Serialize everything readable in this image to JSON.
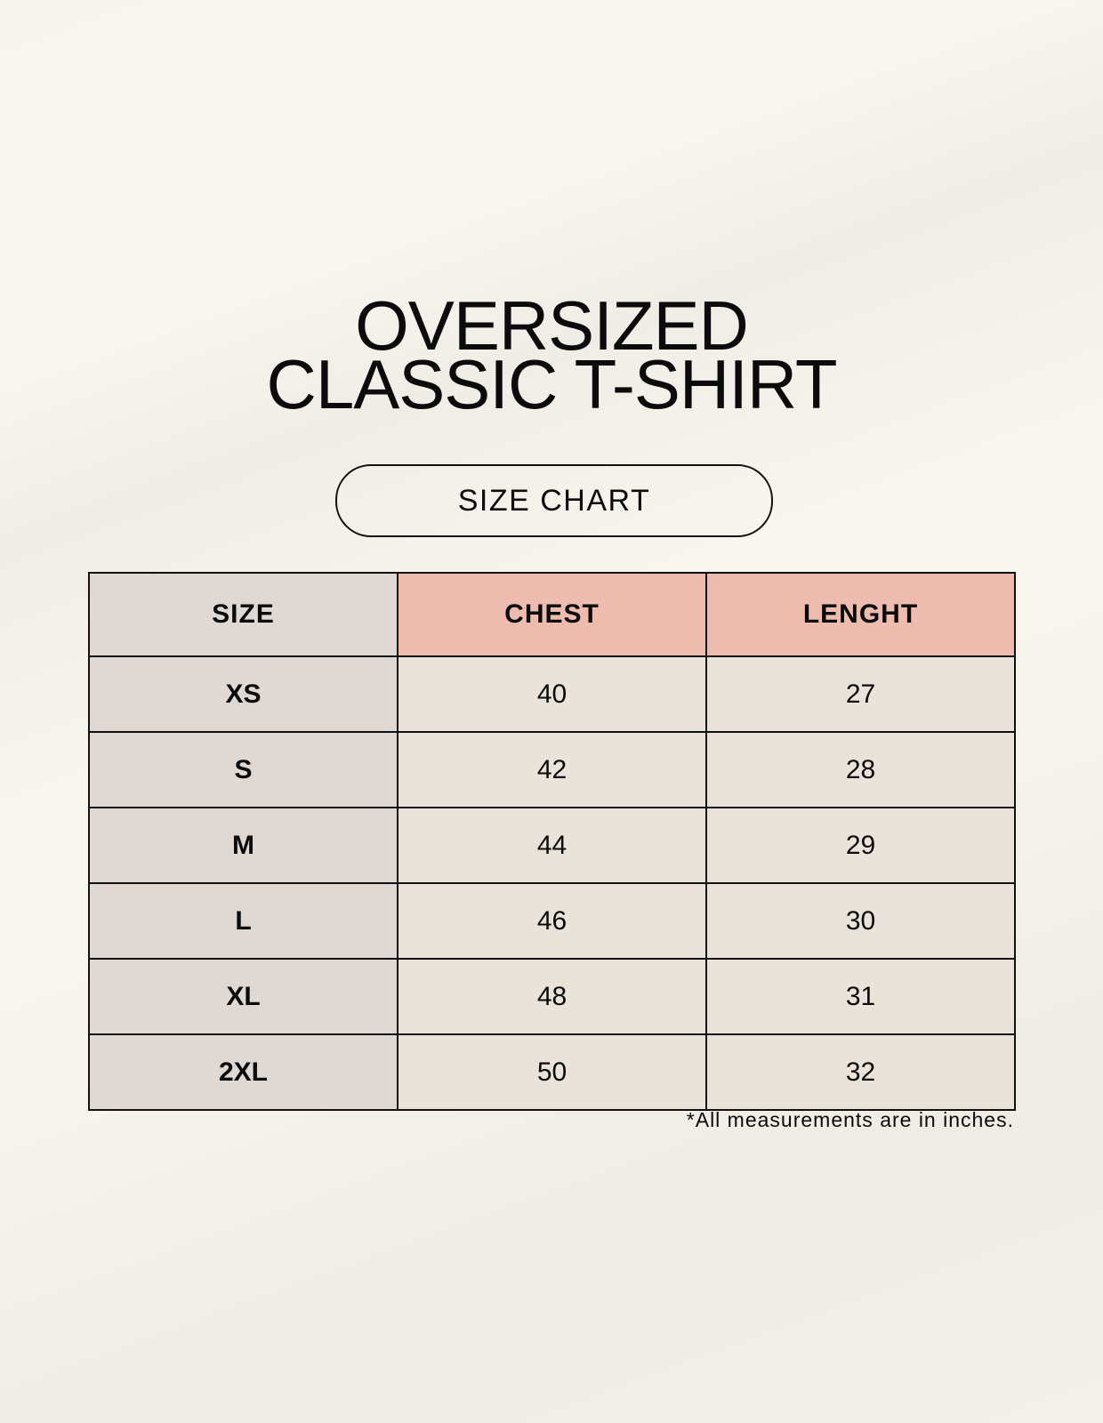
{
  "title_line1": "OVERSIZED",
  "title_line2": "CLASSIC T-SHIRT",
  "badge": "SIZE CHART",
  "table": {
    "headers": [
      "SIZE",
      "CHEST",
      "LENGHT"
    ],
    "rows": [
      [
        "XS",
        "40",
        "27"
      ],
      [
        "S",
        "42",
        "28"
      ],
      [
        "M",
        "44",
        "29"
      ],
      [
        "L",
        "46",
        "30"
      ],
      [
        "XL",
        "48",
        "31"
      ],
      [
        "2XL",
        "50",
        "32"
      ]
    ]
  },
  "footnote": "*All measurements are in inches.",
  "colors": {
    "size_column": "#e0d8d2",
    "header_highlight": "#edbcae",
    "value_cells": "#eae3d9"
  }
}
